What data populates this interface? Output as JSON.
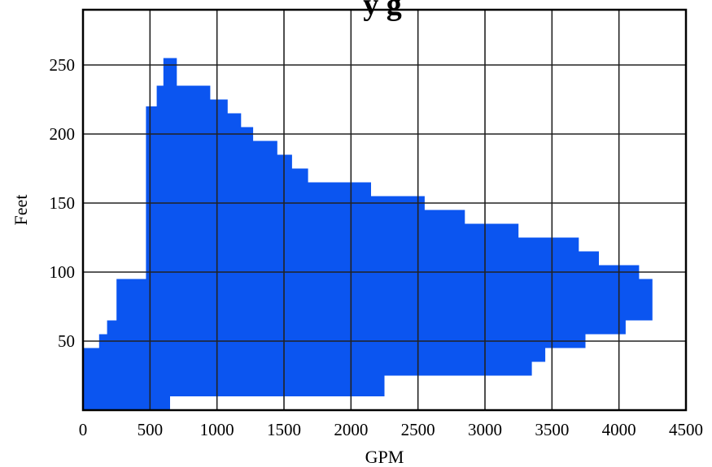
{
  "chart_data": {
    "type": "area",
    "title": "",
    "title_fragment": "y          g",
    "xlabel": "GPM",
    "ylabel": "Feet",
    "xlim": [
      0,
      4500
    ],
    "ylim": [
      0,
      290
    ],
    "x_ticks": [
      0,
      500,
      1000,
      1500,
      2000,
      2500,
      3000,
      3500,
      4000,
      4500
    ],
    "y_ticks": [
      50,
      100,
      150,
      200,
      250
    ],
    "grid": true,
    "color": "#0b55f0",
    "series": [
      {
        "upper_boundary": [
          [
            0,
            45
          ],
          [
            120,
            45
          ],
          [
            120,
            55
          ],
          [
            180,
            55
          ],
          [
            180,
            65
          ],
          [
            250,
            65
          ],
          [
            250,
            95
          ],
          [
            470,
            95
          ],
          [
            470,
            220
          ],
          [
            550,
            220
          ],
          [
            550,
            235
          ],
          [
            600,
            235
          ],
          [
            600,
            255
          ],
          [
            700,
            255
          ],
          [
            700,
            235
          ],
          [
            950,
            235
          ],
          [
            950,
            225
          ],
          [
            1080,
            225
          ],
          [
            1080,
            215
          ],
          [
            1180,
            215
          ],
          [
            1180,
            205
          ],
          [
            1270,
            205
          ],
          [
            1270,
            195
          ],
          [
            1450,
            195
          ],
          [
            1450,
            185
          ],
          [
            1560,
            185
          ],
          [
            1560,
            175
          ],
          [
            1680,
            175
          ],
          [
            1680,
            165
          ],
          [
            2150,
            165
          ],
          [
            2150,
            155
          ],
          [
            2550,
            155
          ],
          [
            2550,
            145
          ],
          [
            2850,
            145
          ],
          [
            2850,
            135
          ],
          [
            3250,
            135
          ],
          [
            3250,
            125
          ],
          [
            3700,
            125
          ],
          [
            3700,
            115
          ],
          [
            3850,
            115
          ],
          [
            3850,
            105
          ],
          [
            4150,
            105
          ],
          [
            4150,
            95
          ],
          [
            4250,
            95
          ],
          [
            4250,
            65
          ]
        ],
        "lower_boundary": [
          [
            4250,
            65
          ],
          [
            4050,
            65
          ],
          [
            4050,
            55
          ],
          [
            3750,
            55
          ],
          [
            3750,
            45
          ],
          [
            3450,
            45
          ],
          [
            3450,
            35
          ],
          [
            3350,
            35
          ],
          [
            3350,
            25
          ],
          [
            2250,
            25
          ],
          [
            2250,
            10
          ],
          [
            650,
            10
          ],
          [
            650,
            0
          ],
          [
            0,
            0
          ]
        ]
      }
    ]
  }
}
